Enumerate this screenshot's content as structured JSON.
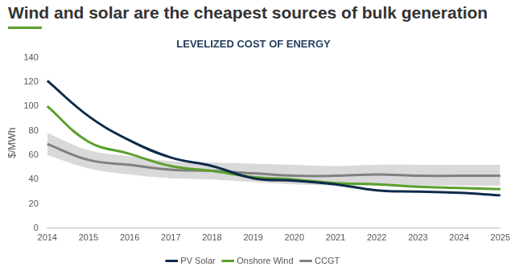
{
  "chart_data": {
    "type": "line",
    "title": "Wind and solar are the cheapest sources of bulk generation",
    "subtitle": "LEVELIZED COST OF ENERGY",
    "y_label": "$/MWh",
    "categories": [
      "2014",
      "2015",
      "2016",
      "2017",
      "2018",
      "2019",
      "2020",
      "2021",
      "2022",
      "2023",
      "2024",
      "2025"
    ],
    "series": [
      {
        "name": "PV Solar",
        "color": "#0d2a4a",
        "values": [
          121,
          92,
          72,
          58,
          51,
          41,
          39,
          36,
          31,
          30,
          29,
          27
        ]
      },
      {
        "name": "Onshore Wind",
        "color": "#5aa02c",
        "values": [
          100,
          71,
          61,
          51,
          47,
          42,
          40,
          37,
          36,
          34,
          33,
          32
        ]
      },
      {
        "name": "CCGT",
        "color": "#808080",
        "values": [
          69,
          56,
          52,
          48,
          47,
          45,
          43,
          43,
          44,
          43,
          43,
          43
        ],
        "range_low": [
          60,
          49,
          44,
          41,
          40,
          38,
          36,
          35,
          35,
          35,
          35,
          35
        ],
        "range_high": [
          78,
          64,
          59,
          55,
          54,
          53,
          52,
          51,
          52,
          52,
          52,
          52
        ],
        "range_color": "#d9d9d9"
      }
    ],
    "ylim": [
      0,
      140
    ],
    "yticks": [
      0,
      20,
      40,
      60,
      80,
      100,
      120,
      140
    ],
    "grid": false,
    "legend": "bottom"
  }
}
